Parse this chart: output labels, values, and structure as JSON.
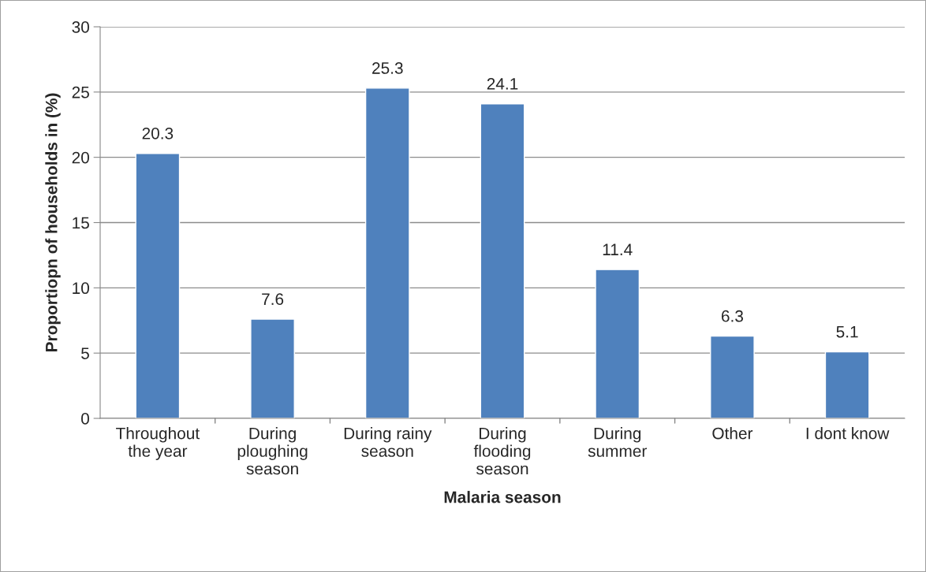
{
  "chart_data": {
    "type": "bar",
    "xlabel": "Malaria season",
    "ylabel": "Proportiopn of households in (%)",
    "categories": [
      "Throughout\nthe year",
      "During\nploughing\nseason",
      "During rainy\nseason",
      "During\nflooding\nseason",
      "During\nsummer",
      "Other",
      "I dont know"
    ],
    "values": [
      20.3,
      7.6,
      25.3,
      24.1,
      11.4,
      6.3,
      5.1
    ],
    "color": "#4f81bd",
    "ylim": [
      0,
      30
    ],
    "yticks": [
      0,
      5,
      10,
      15,
      20,
      25,
      30
    ],
    "grid": "y",
    "data_labels": true
  }
}
